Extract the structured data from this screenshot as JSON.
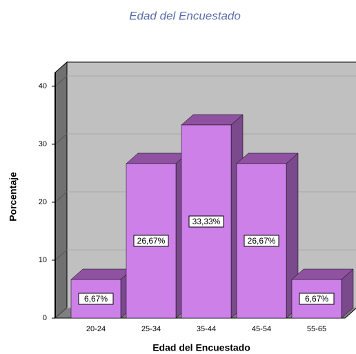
{
  "chart_data": {
    "type": "bar3d",
    "title": "Edad del Encuestado",
    "x_label": "Edad del Encuestado",
    "y_label": "Porcentaje",
    "categories": [
      "20-24",
      "25-34",
      "35-44",
      "45-54",
      "55-65"
    ],
    "values": [
      6.67,
      26.67,
      33.33,
      26.67,
      6.67
    ],
    "value_labels": [
      "6,67%",
      "26,67%",
      "33,33%",
      "26,67%",
      "6,67%"
    ],
    "color": "#cc80e8",
    "ylim": [
      0,
      40
    ],
    "yticks": [
      0,
      10,
      20,
      30,
      40
    ],
    "grid": true
  }
}
